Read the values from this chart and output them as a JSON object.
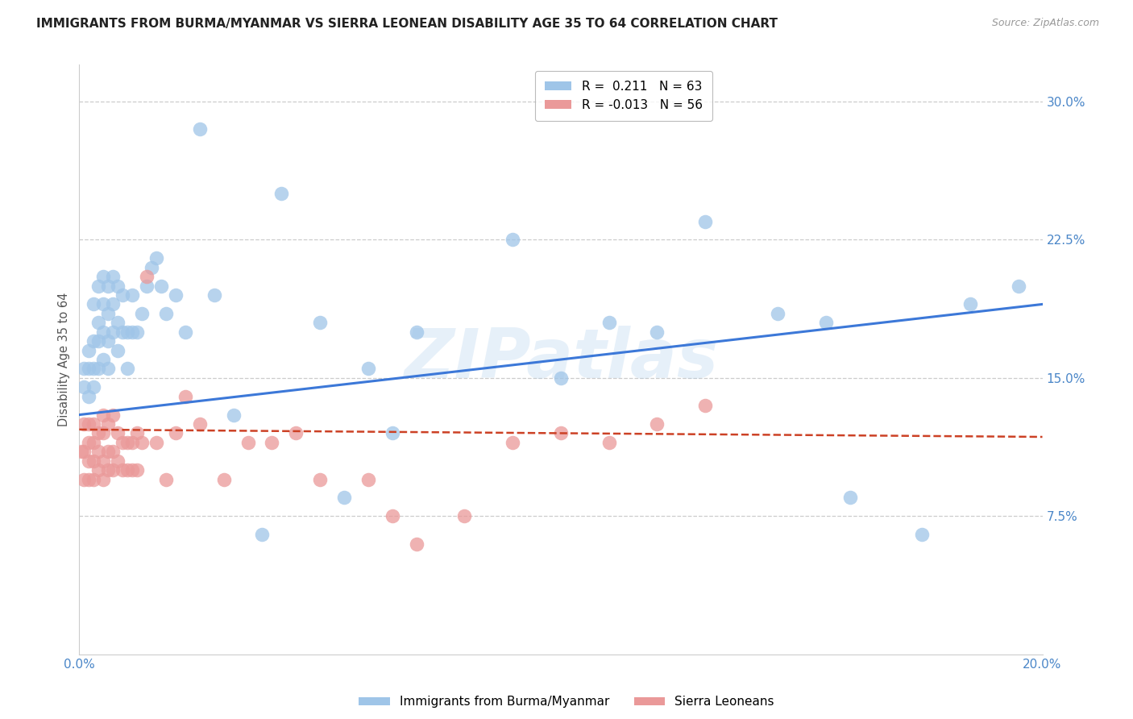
{
  "title": "IMMIGRANTS FROM BURMA/MYANMAR VS SIERRA LEONEAN DISABILITY AGE 35 TO 64 CORRELATION CHART",
  "source": "Source: ZipAtlas.com",
  "ylabel": "Disability Age 35 to 64",
  "xlim": [
    0.0,
    0.2
  ],
  "ylim": [
    0.0,
    0.32
  ],
  "ytick_positions": [
    0.075,
    0.15,
    0.225,
    0.3
  ],
  "ytick_labels": [
    "7.5%",
    "15.0%",
    "22.5%",
    "30.0%"
  ],
  "xtick_positions": [
    0.0,
    0.04,
    0.08,
    0.12,
    0.16,
    0.2
  ],
  "xtick_labels": [
    "0.0%",
    "",
    "",
    "",
    "",
    "20.0%"
  ],
  "blue_color": "#9fc5e8",
  "pink_color": "#ea9999",
  "blue_line_color": "#3c78d8",
  "pink_line_color": "#cc4125",
  "tick_color": "#4a86c8",
  "watermark_text": "ZIPatlas",
  "watermark_color": "#9fc5e8",
  "watermark_alpha": 0.25,
  "legend_label1": "Immigrants from Burma/Myanmar",
  "legend_label2": "Sierra Leoneans",
  "legend_r1_val": " 0.211",
  "legend_r2_val": "-0.013",
  "legend_n1": "63",
  "legend_n2": "56",
  "blue_x": [
    0.001,
    0.001,
    0.002,
    0.002,
    0.002,
    0.003,
    0.003,
    0.003,
    0.003,
    0.004,
    0.004,
    0.004,
    0.004,
    0.005,
    0.005,
    0.005,
    0.005,
    0.006,
    0.006,
    0.006,
    0.006,
    0.007,
    0.007,
    0.007,
    0.008,
    0.008,
    0.008,
    0.009,
    0.009,
    0.01,
    0.01,
    0.011,
    0.011,
    0.012,
    0.013,
    0.014,
    0.015,
    0.016,
    0.017,
    0.018,
    0.02,
    0.022,
    0.025,
    0.028,
    0.032,
    0.038,
    0.042,
    0.05,
    0.055,
    0.06,
    0.065,
    0.07,
    0.09,
    0.1,
    0.11,
    0.12,
    0.13,
    0.145,
    0.155,
    0.16,
    0.175,
    0.185,
    0.195
  ],
  "blue_y": [
    0.145,
    0.155,
    0.14,
    0.155,
    0.165,
    0.145,
    0.155,
    0.17,
    0.19,
    0.155,
    0.17,
    0.18,
    0.2,
    0.16,
    0.175,
    0.19,
    0.205,
    0.155,
    0.17,
    0.185,
    0.2,
    0.175,
    0.19,
    0.205,
    0.165,
    0.18,
    0.2,
    0.175,
    0.195,
    0.155,
    0.175,
    0.175,
    0.195,
    0.175,
    0.185,
    0.2,
    0.21,
    0.215,
    0.2,
    0.185,
    0.195,
    0.175,
    0.285,
    0.195,
    0.13,
    0.065,
    0.25,
    0.18,
    0.085,
    0.155,
    0.12,
    0.175,
    0.225,
    0.15,
    0.18,
    0.175,
    0.235,
    0.185,
    0.18,
    0.085,
    0.065,
    0.19,
    0.2
  ],
  "pink_x": [
    0.0005,
    0.001,
    0.001,
    0.001,
    0.002,
    0.002,
    0.002,
    0.002,
    0.003,
    0.003,
    0.003,
    0.003,
    0.004,
    0.004,
    0.004,
    0.005,
    0.005,
    0.005,
    0.005,
    0.006,
    0.006,
    0.006,
    0.007,
    0.007,
    0.007,
    0.008,
    0.008,
    0.009,
    0.009,
    0.01,
    0.01,
    0.011,
    0.011,
    0.012,
    0.012,
    0.013,
    0.014,
    0.016,
    0.018,
    0.02,
    0.022,
    0.025,
    0.03,
    0.035,
    0.04,
    0.045,
    0.05,
    0.06,
    0.065,
    0.07,
    0.08,
    0.09,
    0.1,
    0.11,
    0.12,
    0.13
  ],
  "pink_y": [
    0.11,
    0.095,
    0.11,
    0.125,
    0.095,
    0.105,
    0.115,
    0.125,
    0.095,
    0.105,
    0.115,
    0.125,
    0.1,
    0.11,
    0.12,
    0.095,
    0.105,
    0.12,
    0.13,
    0.1,
    0.11,
    0.125,
    0.1,
    0.11,
    0.13,
    0.105,
    0.12,
    0.1,
    0.115,
    0.1,
    0.115,
    0.1,
    0.115,
    0.1,
    0.12,
    0.115,
    0.205,
    0.115,
    0.095,
    0.12,
    0.14,
    0.125,
    0.095,
    0.115,
    0.115,
    0.12,
    0.095,
    0.095,
    0.075,
    0.06,
    0.075,
    0.115,
    0.12,
    0.115,
    0.125,
    0.135
  ],
  "blue_trend_start_y": 0.13,
  "blue_trend_end_y": 0.19,
  "pink_trend_start_y": 0.122,
  "pink_trend_end_y": 0.118
}
